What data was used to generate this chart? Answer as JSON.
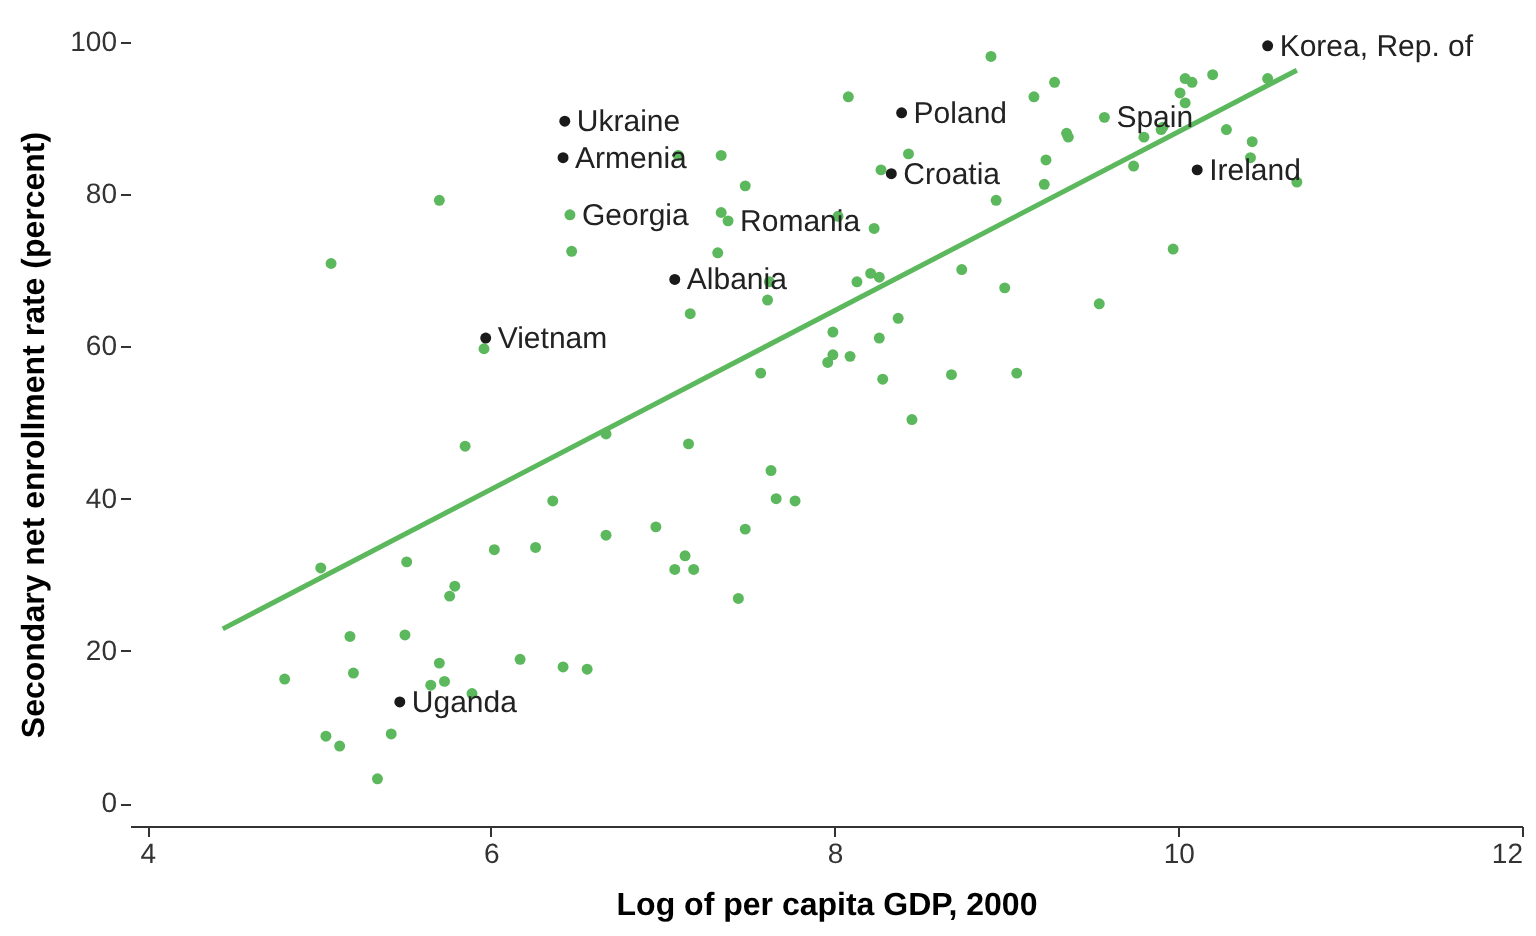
{
  "chart_data": {
    "type": "scatter",
    "xlabel": "Log of per capita GDP, 2000",
    "ylabel": "Secondary net enrollment rate (percent)",
    "xlim": [
      3.9,
      12
    ],
    "ylim": [
      -3,
      100
    ],
    "xticks": [
      4,
      6,
      8,
      10,
      12
    ],
    "yticks": [
      0,
      20,
      40,
      60,
      80,
      100
    ],
    "grid": false,
    "legend": false,
    "marker": "circle",
    "series": [
      {
        "color": "#5cb85c",
        "x": [
          5.7,
          5.07,
          6.46,
          6.47,
          5.96,
          8.91,
          9.28,
          9.16,
          8.08,
          9.57,
          9.35,
          9.36,
          9.8,
          9.9,
          9.74,
          7.34,
          8.43,
          9.23,
          9.22,
          7.48,
          8.27,
          8.94,
          7.34,
          7.38,
          8.02,
          8.23,
          7.32,
          7.09,
          8.13,
          8.21,
          8.26,
          8.74,
          8.99,
          9.54,
          7.62,
          7.61,
          7.16,
          8.37,
          7.99,
          8.26,
          7.99,
          8.09,
          7.96,
          7.57,
          8.28,
          8.68,
          9.06,
          8.45,
          10.04,
          10.08,
          10.2,
          10.01,
          10.04,
          9.91,
          10.28,
          10.43,
          10.52,
          10.42,
          10.69,
          9.97,
          7.15,
          7.63,
          7.66,
          7.77,
          6.96,
          7.48,
          7.13,
          7.07,
          7.18,
          7.44,
          5.85,
          6.67,
          6.36,
          5.01,
          5.51,
          6.02,
          6.26,
          6.67,
          5.79,
          5.76,
          5.18,
          5.5,
          4.8,
          5.2,
          5.7,
          6.17,
          6.42,
          6.56,
          5.73,
          5.65,
          5.89,
          5.04,
          5.12,
          5.42,
          5.34
        ],
        "values": [
          79.2,
          70.9,
          77.3,
          72.5,
          59.7,
          98.1,
          94.7,
          92.8,
          92.8,
          90.1,
          88.0,
          87.5,
          87.5,
          88.5,
          83.7,
          85.1,
          85.3,
          84.5,
          81.3,
          81.1,
          83.2,
          79.2,
          77.6,
          76.5,
          77.1,
          75.5,
          72.3,
          85.1,
          68.5,
          69.6,
          69.1,
          70.1,
          67.7,
          65.6,
          68.5,
          66.1,
          64.3,
          63.7,
          61.9,
          61.1,
          58.9,
          58.7,
          57.9,
          56.5,
          55.7,
          56.3,
          56.5,
          50.4,
          95.2,
          94.7,
          95.7,
          93.3,
          92.0,
          88.8,
          88.5,
          86.9,
          95.2,
          84.8,
          81.6,
          72.8,
          47.2,
          43.7,
          40.0,
          39.7,
          36.3,
          36.0,
          32.5,
          30.7,
          30.7,
          26.9,
          46.9,
          48.5,
          39.7,
          30.9,
          31.7,
          33.3,
          33.6,
          35.2,
          28.5,
          27.2,
          21.9,
          22.1,
          16.3,
          17.1,
          18.4,
          18.9,
          17.9,
          17.6,
          16.0,
          15.5,
          14.4,
          8.8,
          7.5,
          9.1,
          3.2
        ]
      },
      {
        "color": "#1a1a1a",
        "x": [
          6.43,
          6.42,
          5.97,
          7.07,
          8.39,
          8.33,
          10.52,
          10.11,
          5.47
        ],
        "values": [
          89.6,
          84.8,
          61.1,
          68.8,
          90.7,
          82.7,
          99.5,
          83.2,
          13.3
        ]
      },
      {
        "type": "line",
        "marker": "none",
        "color": "#5cb85c",
        "x": [
          4.44,
          10.69
        ],
        "values": [
          22.9,
          96.3
        ]
      }
    ],
    "annotations": [
      {
        "text": "Ukraine",
        "x": 6.43,
        "y": 89.6
      },
      {
        "text": "Armenia",
        "x": 6.42,
        "y": 84.8
      },
      {
        "text": "Georgia",
        "x": 6.46,
        "y": 77.3
      },
      {
        "text": "Vietnam",
        "x": 5.97,
        "y": 61.1
      },
      {
        "text": "Albania",
        "x": 7.07,
        "y": 68.8
      },
      {
        "text": "Romania",
        "x": 7.38,
        "y": 76.5
      },
      {
        "text": "Poland",
        "x": 8.39,
        "y": 90.7
      },
      {
        "text": "Croatia",
        "x": 8.33,
        "y": 82.7
      },
      {
        "text": "Spain",
        "x": 9.57,
        "y": 90.1
      },
      {
        "text": "Korea, Rep. of",
        "x": 10.52,
        "y": 99.5
      },
      {
        "text": "Ireland",
        "x": 10.11,
        "y": 83.2
      },
      {
        "text": "Uganda",
        "x": 5.47,
        "y": 13.3
      }
    ]
  }
}
